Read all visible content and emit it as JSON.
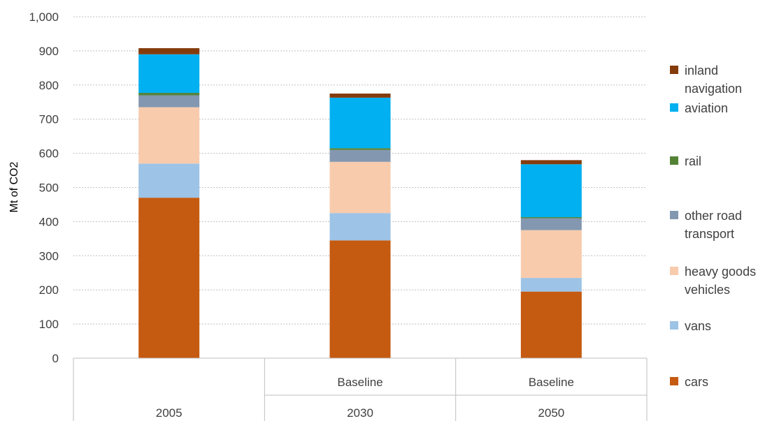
{
  "chart_data": {
    "type": "bar",
    "stacked": true,
    "ylabel": "Mt of CO2",
    "ylim": [
      0,
      1000
    ],
    "yticks": [
      0,
      100,
      200,
      300,
      400,
      500,
      600,
      700,
      800,
      900,
      1000
    ],
    "ytick_labels": [
      "0",
      "100",
      "200",
      "300",
      "400",
      "500",
      "600",
      "700",
      "800",
      "900",
      "1,000"
    ],
    "grid": true,
    "legend_position": "right",
    "categories": [
      {
        "year": "2005",
        "scenario": ""
      },
      {
        "year": "2030",
        "scenario": "Baseline"
      },
      {
        "year": "2050",
        "scenario": "Baseline"
      }
    ],
    "series": [
      {
        "name": "cars",
        "color": "#C55A11",
        "values": [
          470,
          345,
          195
        ]
      },
      {
        "name": "vans",
        "color": "#9DC3E6",
        "values": [
          100,
          80,
          40
        ]
      },
      {
        "name": "heavy goods vehicles",
        "color": "#F8CBAD",
        "values": [
          165,
          150,
          140
        ]
      },
      {
        "name": "other road transport",
        "color": "#8497B0",
        "values": [
          35,
          35,
          35
        ]
      },
      {
        "name": "rail",
        "color": "#548235",
        "values": [
          7,
          5,
          3
        ]
      },
      {
        "name": "aviation",
        "color": "#00B0F0",
        "values": [
          113,
          148,
          155
        ]
      },
      {
        "name": "inland navigation",
        "color": "#843C0C",
        "values": [
          18,
          12,
          12
        ]
      }
    ]
  },
  "legend": {
    "items": [
      {
        "label": "inland navigation",
        "color": "#843C0C"
      },
      {
        "label": "aviation",
        "color": "#00B0F0"
      },
      {
        "label": "rail",
        "color": "#548235"
      },
      {
        "label": "other road transport",
        "color": "#8497B0"
      },
      {
        "label": "heavy goods vehicles",
        "color": "#F8CBAD"
      },
      {
        "label": "vans",
        "color": "#9DC3E6"
      },
      {
        "label": "cars",
        "color": "#C55A11"
      }
    ]
  }
}
